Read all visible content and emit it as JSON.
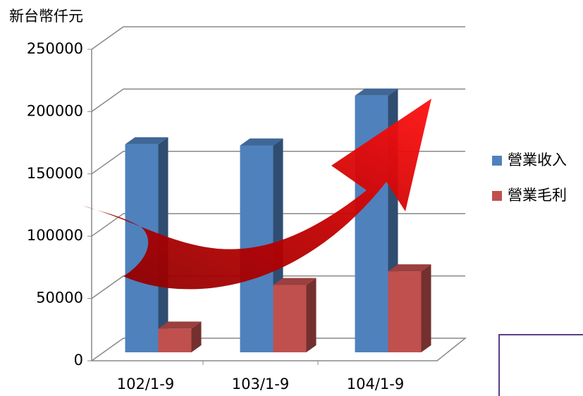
{
  "chart_data": {
    "type": "bar",
    "y_axis_label": "新台幣仟元",
    "categories": [
      "102/1-9",
      "103/1-9",
      "104/1-9"
    ],
    "series": [
      {
        "name": "營業收入",
        "color": "#4f81bd",
        "values": [
          167000,
          166000,
          206000
        ]
      },
      {
        "name": "營業毛利",
        "color": "#c0504d",
        "values": [
          19000,
          54000,
          65000
        ]
      }
    ],
    "ylim": [
      0,
      250000
    ],
    "yticks": [
      0,
      50000,
      100000,
      150000,
      200000,
      250000
    ],
    "grid": true,
    "legend": "right"
  }
}
